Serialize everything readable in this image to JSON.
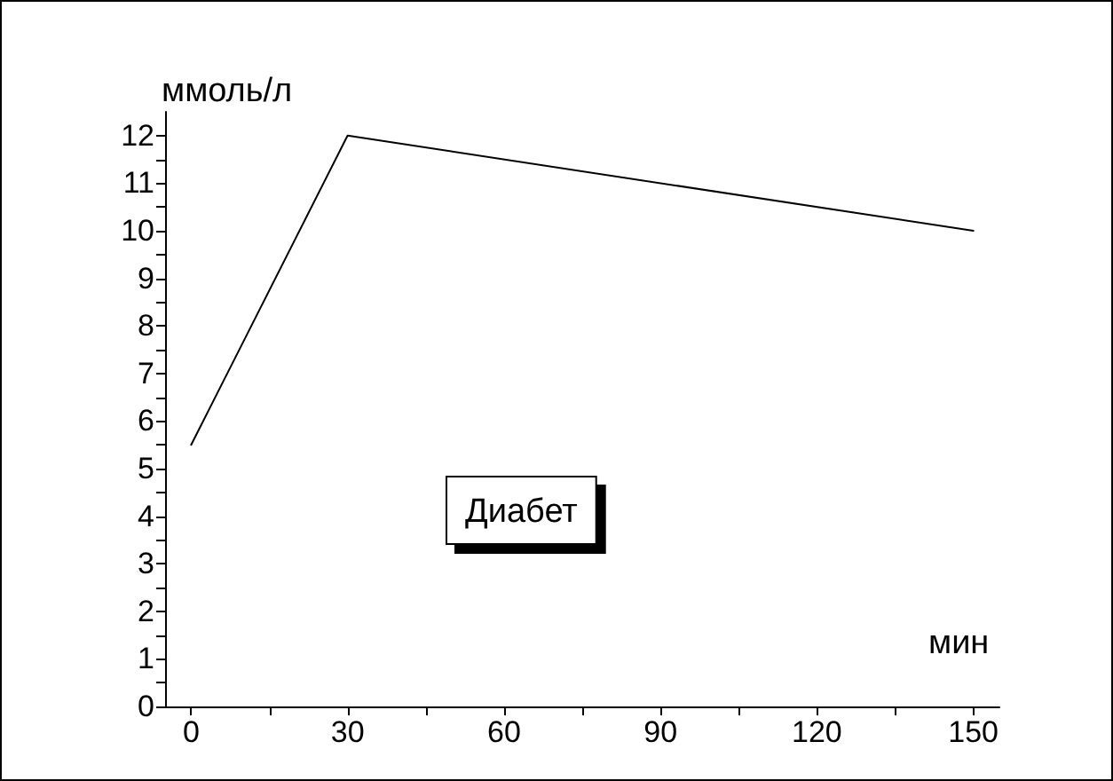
{
  "chart_data": {
    "type": "line",
    "xlabel": "мин",
    "ylabel": "ммоль/л",
    "annotations": [
      "Диабет"
    ],
    "x": [
      0,
      30,
      150
    ],
    "series": [
      {
        "color": "#000000",
        "values": [
          5.5,
          12,
          10
        ]
      }
    ],
    "xlim": [
      -5,
      155
    ],
    "xticks": [
      0,
      {
        "value": 15,
        "label": null
      },
      30,
      {
        "value": 45,
        "label": null
      },
      60,
      {
        "value": 75,
        "label": null
      },
      90,
      {
        "value": 105,
        "label": null
      },
      120,
      {
        "value": 135,
        "label": null
      },
      150
    ],
    "ylim": [
      0,
      12.5
    ],
    "yticks": [
      0,
      {
        "value": 0.5,
        "label": null
      },
      1,
      {
        "value": 1.5,
        "label": null
      },
      2,
      {
        "value": 2.5,
        "label": null
      },
      3,
      {
        "value": 3.5,
        "label": null
      },
      4,
      {
        "value": 4.5,
        "label": null
      },
      5,
      {
        "value": 5.5,
        "label": null
      },
      6,
      {
        "value": 6.5,
        "label": null
      },
      7,
      {
        "value": 7.5,
        "label": null
      },
      8,
      {
        "value": 8.5,
        "label": null
      },
      9,
      {
        "value": 9.5,
        "label": null
      },
      10,
      {
        "value": 10.5,
        "label": null
      },
      11,
      {
        "value": 11.5,
        "label": null
      },
      12
    ],
    "grid": false,
    "legend": false,
    "marker": "none",
    "line_style": "solid"
  }
}
